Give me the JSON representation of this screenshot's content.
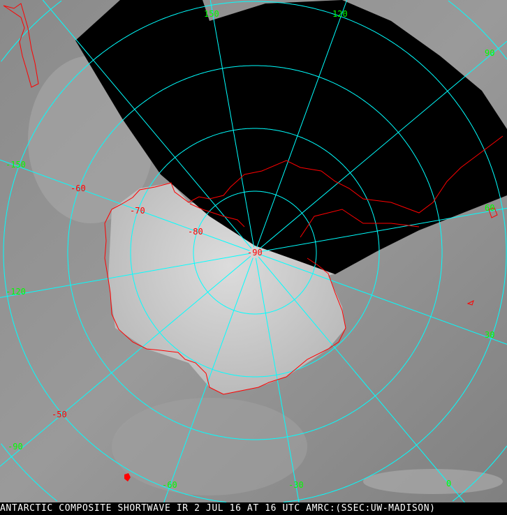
{
  "caption": {
    "text": "ANTARCTIC COMPOSITE SHORTWAVE IR 2 JUL 16 AT 16 UTC AMRC:(SSEC:UW-MADISON)"
  },
  "latitude_labels": [
    "-50",
    "-60",
    "-70",
    "-80",
    "-90"
  ],
  "longitude_labels": [
    "150",
    "120",
    "90",
    "60",
    "30",
    "0",
    "-30",
    "-60",
    "-90",
    "-120",
    "-150"
  ],
  "colors": {
    "grid": "#00ffff",
    "coastline": "#ff0000",
    "longitude_label": "#00ff00",
    "latitude_label": "#ff0000",
    "no_data": "#000000",
    "caption_text": "#ffffff"
  }
}
